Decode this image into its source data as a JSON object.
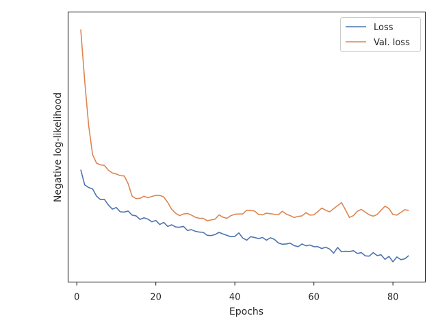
{
  "chart_data": {
    "type": "line",
    "title": "",
    "xlabel": "Epochs",
    "ylabel": "Negative log-likelihood",
    "xlim": [
      -2.2,
      88.2
    ],
    "ylim": [
      0,
      1
    ],
    "y_ticks_shown": false,
    "x_ticks": [
      0,
      20,
      40,
      60,
      80
    ],
    "legend_position": "top-right",
    "grid": false,
    "series": [
      {
        "name": "Loss",
        "color": "#4c72b0",
        "x": [
          1,
          2,
          3,
          4,
          5,
          6,
          7,
          8,
          9,
          10,
          11,
          12,
          13,
          14,
          15,
          16,
          17,
          18,
          19,
          20,
          21,
          22,
          23,
          24,
          25,
          26,
          27,
          28,
          29,
          30,
          31,
          32,
          33,
          34,
          35,
          36,
          37,
          38,
          39,
          40,
          41,
          42,
          43,
          44,
          45,
          46,
          47,
          48,
          49,
          50,
          51,
          52,
          53,
          54,
          55,
          56,
          57,
          58,
          59,
          60,
          61,
          62,
          63,
          64,
          65,
          66,
          67,
          68,
          69,
          70,
          71,
          72,
          73,
          74,
          75,
          76,
          77,
          78,
          79,
          80,
          81,
          82,
          83,
          84
        ],
        "y": [
          0.416,
          0.36,
          0.35,
          0.345,
          0.318,
          0.305,
          0.306,
          0.285,
          0.27,
          0.276,
          0.26,
          0.259,
          0.263,
          0.248,
          0.245,
          0.232,
          0.238,
          0.233,
          0.223,
          0.228,
          0.213,
          0.221,
          0.206,
          0.212,
          0.204,
          0.203,
          0.206,
          0.191,
          0.194,
          0.188,
          0.185,
          0.184,
          0.173,
          0.172,
          0.176,
          0.184,
          0.178,
          0.173,
          0.168,
          0.169,
          0.182,
          0.163,
          0.155,
          0.168,
          0.165,
          0.161,
          0.165,
          0.155,
          0.164,
          0.158,
          0.145,
          0.14,
          0.141,
          0.144,
          0.135,
          0.131,
          0.141,
          0.134,
          0.137,
          0.131,
          0.131,
          0.124,
          0.129,
          0.122,
          0.107,
          0.128,
          0.112,
          0.114,
          0.113,
          0.116,
          0.106,
          0.109,
          0.097,
          0.096,
          0.109,
          0.098,
          0.101,
          0.084,
          0.095,
          0.075,
          0.093,
          0.083,
          0.086,
          0.098
        ]
      },
      {
        "name": "Val. loss",
        "color": "#dd8452",
        "x": [
          1,
          2,
          3,
          4,
          5,
          6,
          7,
          8,
          9,
          10,
          11,
          12,
          13,
          14,
          15,
          16,
          17,
          18,
          19,
          20,
          21,
          22,
          23,
          24,
          25,
          26,
          27,
          28,
          29,
          30,
          31,
          32,
          33,
          34,
          35,
          36,
          37,
          38,
          39,
          40,
          41,
          42,
          43,
          44,
          45,
          46,
          47,
          48,
          49,
          50,
          51,
          52,
          53,
          54,
          55,
          56,
          57,
          58,
          59,
          60,
          61,
          62,
          63,
          64,
          65,
          66,
          67,
          68,
          69,
          70,
          71,
          72,
          73,
          74,
          75,
          76,
          77,
          78,
          79,
          80,
          81,
          82,
          83,
          84
        ],
        "y": [
          0.935,
          0.745,
          0.58,
          0.472,
          0.44,
          0.434,
          0.432,
          0.414,
          0.404,
          0.4,
          0.394,
          0.393,
          0.364,
          0.318,
          0.309,
          0.31,
          0.318,
          0.312,
          0.317,
          0.321,
          0.321,
          0.315,
          0.295,
          0.27,
          0.255,
          0.246,
          0.252,
          0.254,
          0.248,
          0.24,
          0.236,
          0.236,
          0.227,
          0.23,
          0.233,
          0.249,
          0.24,
          0.236,
          0.246,
          0.251,
          0.252,
          0.252,
          0.266,
          0.265,
          0.263,
          0.25,
          0.249,
          0.255,
          0.253,
          0.251,
          0.249,
          0.262,
          0.252,
          0.246,
          0.239,
          0.243,
          0.245,
          0.257,
          0.248,
          0.249,
          0.261,
          0.274,
          0.266,
          0.26,
          0.272,
          0.283,
          0.294,
          0.267,
          0.239,
          0.246,
          0.262,
          0.269,
          0.259,
          0.249,
          0.244,
          0.25,
          0.266,
          0.281,
          0.272,
          0.25,
          0.248,
          0.258,
          0.268,
          0.265
        ]
      }
    ]
  }
}
